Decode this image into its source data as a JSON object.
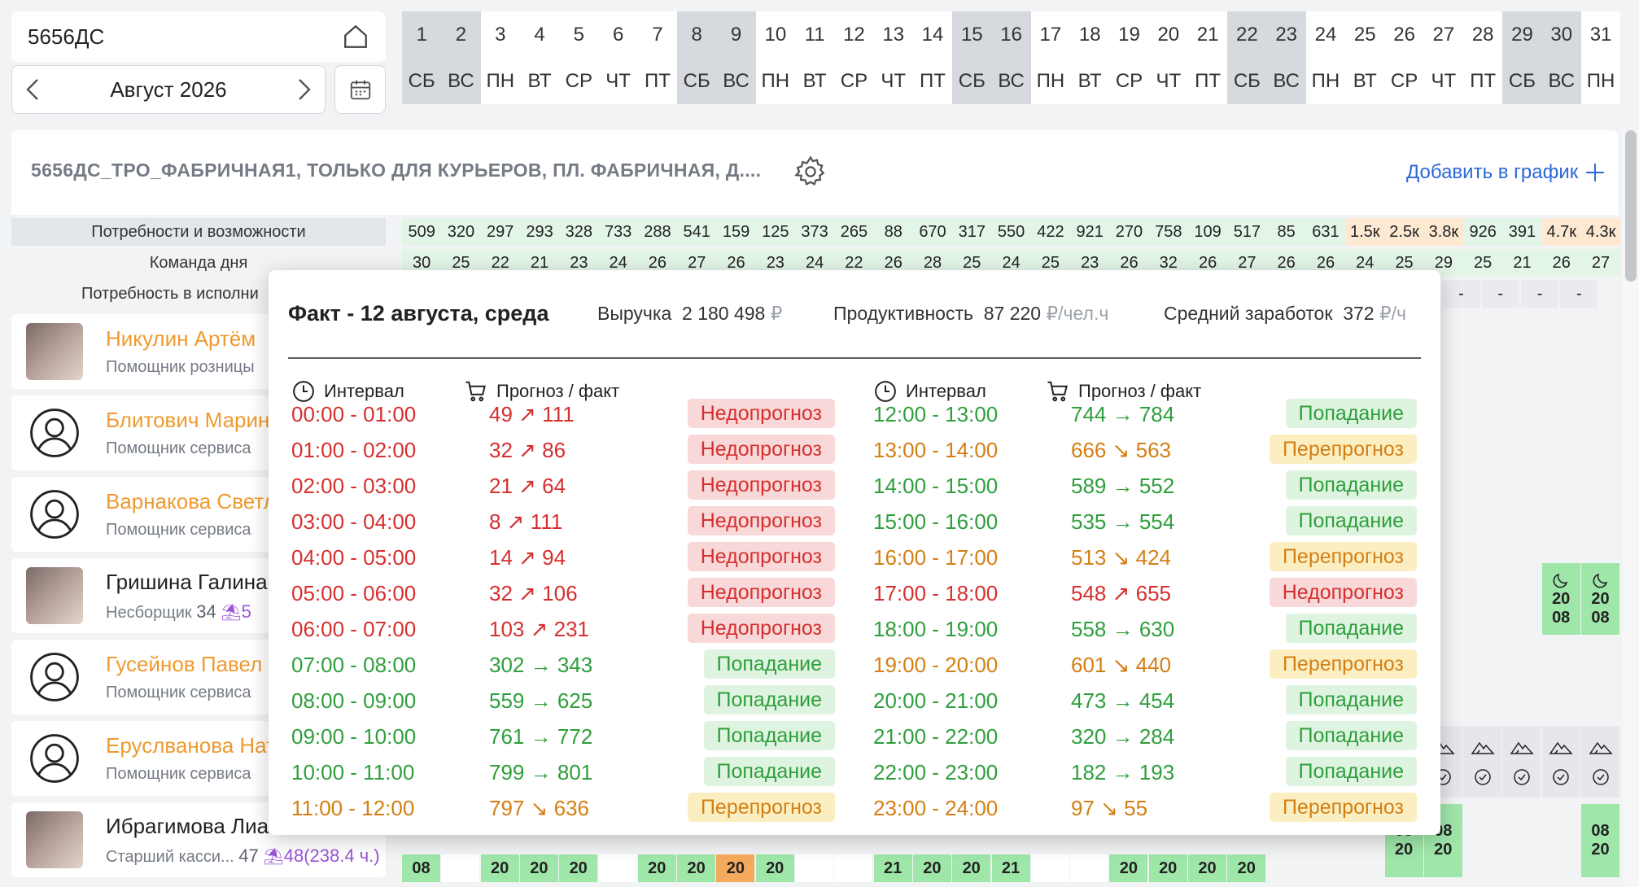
{
  "search": {
    "value": "5656ДС"
  },
  "month_nav": {
    "label": "Август 2026"
  },
  "days": [
    {
      "n": "1",
      "w": "СБ",
      "we": true
    },
    {
      "n": "2",
      "w": "ВС",
      "we": true
    },
    {
      "n": "3",
      "w": "ПН",
      "we": false
    },
    {
      "n": "4",
      "w": "ВТ",
      "we": false
    },
    {
      "n": "5",
      "w": "СР",
      "we": false
    },
    {
      "n": "6",
      "w": "ЧТ",
      "we": false
    },
    {
      "n": "7",
      "w": "ПТ",
      "we": false
    },
    {
      "n": "8",
      "w": "СБ",
      "we": true
    },
    {
      "n": "9",
      "w": "ВС",
      "we": true
    },
    {
      "n": "10",
      "w": "ПН",
      "we": false
    },
    {
      "n": "11",
      "w": "ВТ",
      "we": false
    },
    {
      "n": "12",
      "w": "СР",
      "we": false
    },
    {
      "n": "13",
      "w": "ЧТ",
      "we": false
    },
    {
      "n": "14",
      "w": "ПТ",
      "we": false
    },
    {
      "n": "15",
      "w": "СБ",
      "we": true
    },
    {
      "n": "16",
      "w": "ВС",
      "we": true
    },
    {
      "n": "17",
      "w": "ПН",
      "we": false
    },
    {
      "n": "18",
      "w": "ВТ",
      "we": false
    },
    {
      "n": "19",
      "w": "СР",
      "we": false
    },
    {
      "n": "20",
      "w": "ЧТ",
      "we": false
    },
    {
      "n": "21",
      "w": "ПТ",
      "we": false
    },
    {
      "n": "22",
      "w": "СБ",
      "we": true
    },
    {
      "n": "23",
      "w": "ВС",
      "we": true
    },
    {
      "n": "24",
      "w": "ПН",
      "we": false
    },
    {
      "n": "25",
      "w": "ВТ",
      "we": false
    },
    {
      "n": "26",
      "w": "СР",
      "we": false
    },
    {
      "n": "27",
      "w": "ЧТ",
      "we": false
    },
    {
      "n": "28",
      "w": "ПТ",
      "we": false
    },
    {
      "n": "29",
      "w": "СБ",
      "we": true
    },
    {
      "n": "30",
      "w": "ВС",
      "we": true
    },
    {
      "n": "31",
      "w": "ПН",
      "we": false
    }
  ],
  "store": {
    "title": "5656ДС_ТРО_ФАБРИЧНАЯ1, ТОЛЬКО ДЛЯ КУРЬЕРОВ, ПЛ. ФАБРИЧНАЯ, Д....",
    "add_label": "Добавить в график"
  },
  "rows": {
    "needs": {
      "label": "Потребности и возможности",
      "values": [
        "509",
        "320",
        "297",
        "293",
        "328",
        "733",
        "288",
        "541",
        "159",
        "125",
        "373",
        "265",
        "88",
        "670",
        "317",
        "550",
        "422",
        "921",
        "270",
        "758",
        "109",
        "517",
        "85",
        "631",
        "1.5к",
        "2.5к",
        "3.8к",
        "926",
        "391",
        "4.7к",
        "4.3к"
      ],
      "tone": [
        "g",
        "g",
        "g",
        "g",
        "g",
        "g",
        "g",
        "g",
        "g",
        "g",
        "g",
        "g",
        "g",
        "g",
        "g",
        "g",
        "g",
        "g",
        "g",
        "g",
        "g",
        "g",
        "g",
        "g",
        "o",
        "o",
        "o",
        "g",
        "g",
        "o",
        "o"
      ]
    },
    "team": {
      "label": "Команда дня",
      "values": [
        "30",
        "25",
        "22",
        "21",
        "23",
        "24",
        "26",
        "27",
        "26",
        "23",
        "24",
        "22",
        "26",
        "28",
        "25",
        "24",
        "25",
        "23",
        "26",
        "32",
        "26",
        "27",
        "26",
        "26",
        "24",
        "25",
        "29",
        "25",
        "21",
        "26",
        "27"
      ]
    },
    "executors": {
      "label": "Потребность в исполни",
      "values": [
        "-",
        "-",
        "-",
        "-",
        "-"
      ]
    }
  },
  "employees": [
    {
      "name": "Никулин Артём",
      "role": "Помощник розницы",
      "orange": true,
      "photo": true
    },
    {
      "name": "Блитович Марина",
      "role": "Помощник сервиса",
      "orange": true,
      "photo": false
    },
    {
      "name": "Варнакова Светл",
      "role": "Помощник сервиса",
      "orange": true,
      "photo": false
    },
    {
      "name": "Гришина Галина",
      "role": "Несборщик",
      "hours": "34",
      "extra": "5",
      "orange": false,
      "photo": true
    },
    {
      "name": "Гусейнов Павел",
      "role": "Помощник сервиса",
      "orange": true,
      "photo": false
    },
    {
      "name": "Еруслванова Ната",
      "role": "Помощник сервиса",
      "orange": true,
      "photo": false
    },
    {
      "name": "Ибрагимова Лиан",
      "role": "Старший касси...",
      "hours": "47",
      "extra": "48(238.4 ч.)",
      "orange": false,
      "photo": true
    }
  ],
  "shift_cells": {
    "grishina": [
      {
        "top": "20",
        "bot": "08"
      },
      {
        "top": "20",
        "bot": "08"
      }
    ],
    "ibragimova_row1": [
      {
        "top": "08",
        "bot": "20"
      },
      {
        "top": "08",
        "bot": "20"
      },
      {
        "top": "08",
        "bot": "20"
      }
    ],
    "bottom_row": [
      "08",
      "",
      "20",
      "20",
      "20",
      "",
      "20",
      "20",
      "20",
      "20",
      "",
      "",
      "21",
      "20",
      "20",
      "21",
      "",
      "",
      "20",
      "20",
      "20",
      "20"
    ]
  },
  "popup": {
    "title": "Факт - 12 августа, среда",
    "revenue_label": "Выручка",
    "revenue_value": "2 180 498",
    "revenue_unit": "₽",
    "prod_label": "Продуктивность",
    "prod_value": "87 220",
    "prod_unit": "₽/чел.ч",
    "wage_label": "Средний заработок",
    "wage_value": "372",
    "wage_unit": "₽/ч",
    "col_interval": "Интервал",
    "col_forecast": "Прогноз / факт",
    "left": [
      {
        "iv": "00:00 - 01:00",
        "fc": "49 ↗ 111",
        "st": "Недопрогноз",
        "c": "red"
      },
      {
        "iv": "01:00 - 02:00",
        "fc": "32 ↗ 86",
        "st": "Недопрогноз",
        "c": "red"
      },
      {
        "iv": "02:00 - 03:00",
        "fc": "21 ↗ 64",
        "st": "Недопрогноз",
        "c": "red"
      },
      {
        "iv": "03:00 - 04:00",
        "fc": "8 ↗ 111",
        "st": "Недопрогноз",
        "c": "red"
      },
      {
        "iv": "04:00 - 05:00",
        "fc": "14 ↗ 94",
        "st": "Недопрогноз",
        "c": "red"
      },
      {
        "iv": "05:00 - 06:00",
        "fc": "32 ↗ 106",
        "st": "Недопрогноз",
        "c": "red"
      },
      {
        "iv": "06:00 - 07:00",
        "fc": "103 ↗ 231",
        "st": "Недопрогноз",
        "c": "red"
      },
      {
        "iv": "07:00 - 08:00",
        "fc": "302 → 343",
        "st": "Попадание",
        "c": "grn"
      },
      {
        "iv": "08:00 - 09:00",
        "fc": "559 → 625",
        "st": "Попадание",
        "c": "grn"
      },
      {
        "iv": "09:00 - 10:00",
        "fc": "761 → 772",
        "st": "Попадание",
        "c": "grn"
      },
      {
        "iv": "10:00 - 11:00",
        "fc": "799 → 801",
        "st": "Попадание",
        "c": "grn"
      },
      {
        "iv": "11:00 - 12:00",
        "fc": "797 ↘ 636",
        "st": "Перепрогноз",
        "c": "orn"
      }
    ],
    "right": [
      {
        "iv": "12:00 - 13:00",
        "fc": "744 → 784",
        "st": "Попадание",
        "c": "grn"
      },
      {
        "iv": "13:00 - 14:00",
        "fc": "666 ↘ 563",
        "st": "Перепрогноз",
        "c": "orn"
      },
      {
        "iv": "14:00 - 15:00",
        "fc": "589 → 552",
        "st": "Попадание",
        "c": "grn"
      },
      {
        "iv": "15:00 - 16:00",
        "fc": "535 → 554",
        "st": "Попадание",
        "c": "grn"
      },
      {
        "iv": "16:00 - 17:00",
        "fc": "513 ↘ 424",
        "st": "Перепрогноз",
        "c": "orn"
      },
      {
        "iv": "17:00 - 18:00",
        "fc": "548 ↗ 655",
        "st": "Недопрогноз",
        "c": "red"
      },
      {
        "iv": "18:00 - 19:00",
        "fc": "558 → 630",
        "st": "Попадание",
        "c": "grn"
      },
      {
        "iv": "19:00 - 20:00",
        "fc": "601 ↘ 440",
        "st": "Перепрогноз",
        "c": "orn"
      },
      {
        "iv": "20:00 - 21:00",
        "fc": "473 → 454",
        "st": "Попадание",
        "c": "grn"
      },
      {
        "iv": "21:00 - 22:00",
        "fc": "320 → 284",
        "st": "Попадание",
        "c": "grn"
      },
      {
        "iv": "22:00 - 23:00",
        "fc": "182 → 193",
        "st": "Попадание",
        "c": "grn"
      },
      {
        "iv": "23:00 - 24:00",
        "fc": "97 ↘ 55",
        "st": "Перепрогноз",
        "c": "orn"
      }
    ]
  },
  "colors": {
    "accent": "#2b68d9",
    "green": "#2e9f3c",
    "red": "#d5302f",
    "orange": "#d47f14",
    "shift_green": "#9fe6a9"
  }
}
